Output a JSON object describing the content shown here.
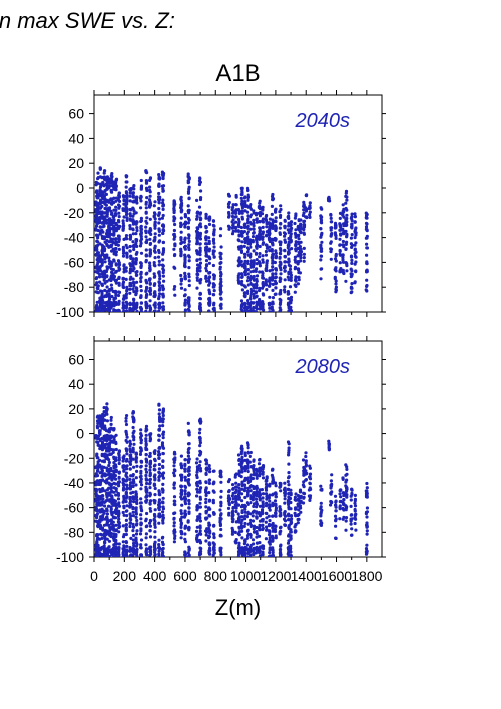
{
  "heading": "in max SWE vs. Z:",
  "panel_title": "A1B",
  "xlabel": "Z(m)",
  "series_color": "#1f24b4",
  "chart_data": [
    {
      "type": "scatter",
      "label": "2040s",
      "xlim": [
        0,
        1900
      ],
      "ylim": [
        -100,
        75
      ],
      "x_ticks": [
        0,
        100,
        200,
        300,
        400,
        500,
        600,
        700,
        800,
        900,
        1000,
        1100,
        1200,
        1300,
        1400,
        1500,
        1600,
        1700,
        1800
      ],
      "x_tick_labels": [
        "0",
        "200",
        "400",
        "600",
        "800",
        "1000",
        "1200",
        "1400",
        "1600",
        "1800"
      ],
      "x_tick_label_values": [
        0,
        200,
        400,
        600,
        800,
        1000,
        1200,
        1400,
        1600,
        1800
      ],
      "y_ticks": [
        -100,
        -80,
        -60,
        -40,
        -20,
        0,
        20,
        40,
        60
      ],
      "columns": [
        [
          15,
          -100,
          5
        ],
        [
          25,
          -100,
          15
        ],
        [
          40,
          -100,
          18
        ],
        [
          55,
          -100,
          12
        ],
        [
          70,
          -100,
          18
        ],
        [
          85,
          -100,
          10
        ],
        [
          100,
          -100,
          16
        ],
        [
          115,
          -100,
          12
        ],
        [
          130,
          -100,
          8
        ],
        [
          145,
          -100,
          10
        ],
        [
          165,
          -95,
          0
        ],
        [
          195,
          -95,
          -5
        ],
        [
          215,
          -100,
          10
        ],
        [
          240,
          -100,
          0
        ],
        [
          260,
          -100,
          5
        ],
        [
          280,
          -100,
          -5
        ],
        [
          310,
          -100,
          8
        ],
        [
          345,
          -100,
          15
        ],
        [
          370,
          -100,
          10
        ],
        [
          400,
          -95,
          -10
        ],
        [
          430,
          -100,
          12
        ],
        [
          455,
          -100,
          15
        ],
        [
          530,
          -90,
          -10
        ],
        [
          575,
          -85,
          -5
        ],
        [
          600,
          -95,
          -20
        ],
        [
          625,
          -95,
          12
        ],
        [
          680,
          -90,
          -10
        ],
        [
          700,
          -100,
          10
        ],
        [
          740,
          -90,
          -20
        ],
        [
          760,
          -95,
          -20
        ],
        [
          790,
          -95,
          -25
        ],
        [
          835,
          -95,
          -30
        ],
        [
          890,
          -35,
          -5
        ],
        [
          915,
          -40,
          -10
        ],
        [
          935,
          -35,
          -5
        ],
        [
          955,
          -85,
          -15
        ],
        [
          975,
          -95,
          0
        ],
        [
          995,
          -95,
          -5
        ],
        [
          1015,
          -95,
          0
        ],
        [
          1035,
          -95,
          -10
        ],
        [
          1055,
          -95,
          -15
        ],
        [
          1075,
          -95,
          -20
        ],
        [
          1095,
          -95,
          -10
        ],
        [
          1115,
          -95,
          -15
        ],
        [
          1140,
          -85,
          -20
        ],
        [
          1160,
          -95,
          -25
        ],
        [
          1180,
          -95,
          -5
        ],
        [
          1200,
          -90,
          -15
        ],
        [
          1230,
          -95,
          -10
        ],
        [
          1260,
          -85,
          -25
        ],
        [
          1285,
          -95,
          -20
        ],
        [
          1300,
          -95,
          -25
        ],
        [
          1330,
          -85,
          -15
        ],
        [
          1350,
          -80,
          -25
        ],
        [
          1365,
          -70,
          -25
        ],
        [
          1385,
          -60,
          -10
        ],
        [
          1400,
          -25,
          -5
        ],
        [
          1425,
          -25,
          -10
        ],
        [
          1500,
          -75,
          -15
        ],
        [
          1550,
          -15,
          -5
        ],
        [
          1565,
          -60,
          -20
        ],
        [
          1595,
          -85,
          -25
        ],
        [
          1625,
          -70,
          -20
        ],
        [
          1645,
          -70,
          -10
        ],
        [
          1665,
          -80,
          0
        ],
        [
          1700,
          -85,
          -20
        ],
        [
          1725,
          -80,
          -20
        ],
        [
          1800,
          -90,
          -20
        ]
      ]
    },
    {
      "type": "scatter",
      "label": "2080s",
      "xlim": [
        0,
        1900
      ],
      "ylim": [
        -100,
        75
      ],
      "x_ticks": [
        0,
        100,
        200,
        300,
        400,
        500,
        600,
        700,
        800,
        900,
        1000,
        1100,
        1200,
        1300,
        1400,
        1500,
        1600,
        1700,
        1800
      ],
      "x_tick_labels": [
        "0",
        "200",
        "400",
        "600",
        "800",
        "1000",
        "1200",
        "1400",
        "1600",
        "1800"
      ],
      "x_tick_label_values": [
        0,
        200,
        400,
        600,
        800,
        1000,
        1200,
        1400,
        1600,
        1800
      ],
      "y_ticks": [
        -100,
        -80,
        -60,
        -40,
        -20,
        0,
        20,
        40,
        60
      ],
      "columns": [
        [
          15,
          -100,
          0
        ],
        [
          25,
          -100,
          15
        ],
        [
          40,
          -100,
          20
        ],
        [
          55,
          -100,
          18
        ],
        [
          70,
          -100,
          22
        ],
        [
          85,
          -100,
          25
        ],
        [
          100,
          -100,
          10
        ],
        [
          115,
          -100,
          15
        ],
        [
          130,
          -100,
          5
        ],
        [
          145,
          -100,
          0
        ],
        [
          165,
          -100,
          -10
        ],
        [
          195,
          -100,
          -15
        ],
        [
          215,
          -100,
          15
        ],
        [
          240,
          -100,
          -5
        ],
        [
          260,
          -100,
          20
        ],
        [
          280,
          -100,
          -15
        ],
        [
          310,
          -100,
          5
        ],
        [
          345,
          -100,
          10
        ],
        [
          370,
          -100,
          0
        ],
        [
          400,
          -95,
          -10
        ],
        [
          430,
          -100,
          25
        ],
        [
          455,
          -100,
          20
        ],
        [
          530,
          -90,
          -15
        ],
        [
          575,
          -85,
          -10
        ],
        [
          600,
          -95,
          -20
        ],
        [
          625,
          -95,
          10
        ],
        [
          680,
          -90,
          -20
        ],
        [
          700,
          -100,
          12
        ],
        [
          740,
          -90,
          -20
        ],
        [
          760,
          -95,
          -25
        ],
        [
          790,
          -95,
          -30
        ],
        [
          835,
          -95,
          -30
        ],
        [
          890,
          -70,
          -35
        ],
        [
          915,
          -90,
          -40
        ],
        [
          935,
          -90,
          -30
        ],
        [
          955,
          -95,
          -15
        ],
        [
          975,
          -95,
          -10
        ],
        [
          995,
          -95,
          -15
        ],
        [
          1015,
          -95,
          -5
        ],
        [
          1035,
          -95,
          -15
        ],
        [
          1055,
          -95,
          -20
        ],
        [
          1075,
          -95,
          -25
        ],
        [
          1095,
          -95,
          -20
        ],
        [
          1115,
          -95,
          -25
        ],
        [
          1140,
          -90,
          -35
        ],
        [
          1160,
          -95,
          -40
        ],
        [
          1180,
          -95,
          -25
        ],
        [
          1200,
          -90,
          -40
        ],
        [
          1230,
          -95,
          -40
        ],
        [
          1260,
          -85,
          -40
        ],
        [
          1285,
          -95,
          -5
        ],
        [
          1300,
          -95,
          -45
        ],
        [
          1330,
          -85,
          -45
        ],
        [
          1350,
          -80,
          -50
        ],
        [
          1365,
          -70,
          -45
        ],
        [
          1385,
          -60,
          -20
        ],
        [
          1400,
          -40,
          -15
        ],
        [
          1425,
          -60,
          -25
        ],
        [
          1500,
          -75,
          -40
        ],
        [
          1550,
          -15,
          -5
        ],
        [
          1565,
          -60,
          -30
        ],
        [
          1595,
          -85,
          -50
        ],
        [
          1625,
          -70,
          -45
        ],
        [
          1645,
          -70,
          -35
        ],
        [
          1665,
          -80,
          -25
        ],
        [
          1700,
          -85,
          -45
        ],
        [
          1725,
          -80,
          -50
        ],
        [
          1800,
          -95,
          -40
        ]
      ]
    }
  ]
}
